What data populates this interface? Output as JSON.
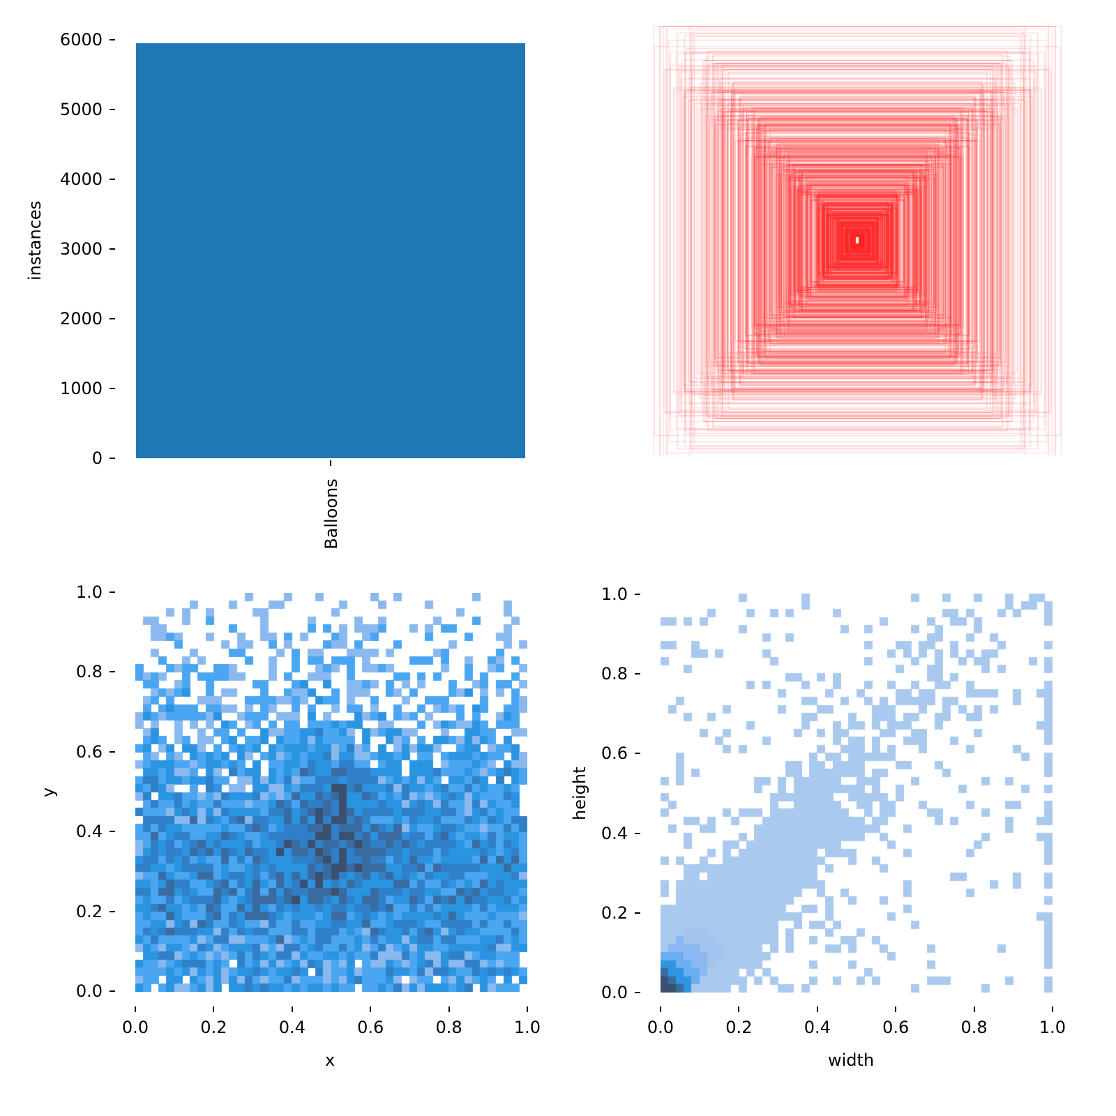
{
  "chart_data": [
    {
      "id": "class-count",
      "type": "bar",
      "title": "",
      "xlabel": "",
      "ylabel": "instances",
      "categories": [
        "Balloons"
      ],
      "values": [
        5950
      ],
      "color": "#1f77b4",
      "ylim": [
        0,
        6000
      ],
      "yticks": [
        "0",
        "1000",
        "2000",
        "3000",
        "4000",
        "5000",
        "6000"
      ],
      "xticks": [
        "Balloons"
      ],
      "grid": false
    },
    {
      "id": "box-overlay",
      "type": "other",
      "description": "Overlay of all bounding boxes centered at image center (red, semi-transparent rectangles)",
      "color": "#ff0000",
      "axes_visible": false
    },
    {
      "id": "xy-hist",
      "type": "heatmap",
      "xlabel": "x",
      "ylabel": "y",
      "xlim": [
        0,
        1
      ],
      "ylim": [
        0,
        1
      ],
      "xticks": [
        "0.0",
        "0.2",
        "0.4",
        "0.6",
        "0.8",
        "1.0"
      ],
      "yticks": [
        "0.0",
        "0.2",
        "0.4",
        "0.6",
        "0.8",
        "1.0"
      ],
      "bins": 50,
      "description": "2D histogram of box centers; density highest near x=0.5, y=0.25-0.55; sparse near y=1.0",
      "palette": [
        "#8ab9ef",
        "#4aa6f0",
        "#2b94e0",
        "#2f80c8",
        "#3a6ba0",
        "#3b4f6e"
      ]
    },
    {
      "id": "wh-hist",
      "type": "heatmap",
      "xlabel": "width",
      "ylabel": "height",
      "xlim": [
        0,
        1
      ],
      "ylim": [
        0,
        1
      ],
      "xticks": [
        "0.0",
        "0.2",
        "0.4",
        "0.6",
        "0.8",
        "1.0"
      ],
      "yticks": [
        "0.0",
        "0.2",
        "0.4",
        "0.6",
        "0.8",
        "1.0"
      ],
      "bins": 50,
      "description": "2D histogram of box width vs height; dense diagonal near origin (w≈h≈0.03), sparse elsewhere, column at width=1.0",
      "palette": [
        "#aac9ee",
        "#a3c4ee",
        "#8bb8f0",
        "#6aaef2",
        "#2e95e0",
        "#3a6ba0",
        "#3b4f6e"
      ]
    }
  ]
}
